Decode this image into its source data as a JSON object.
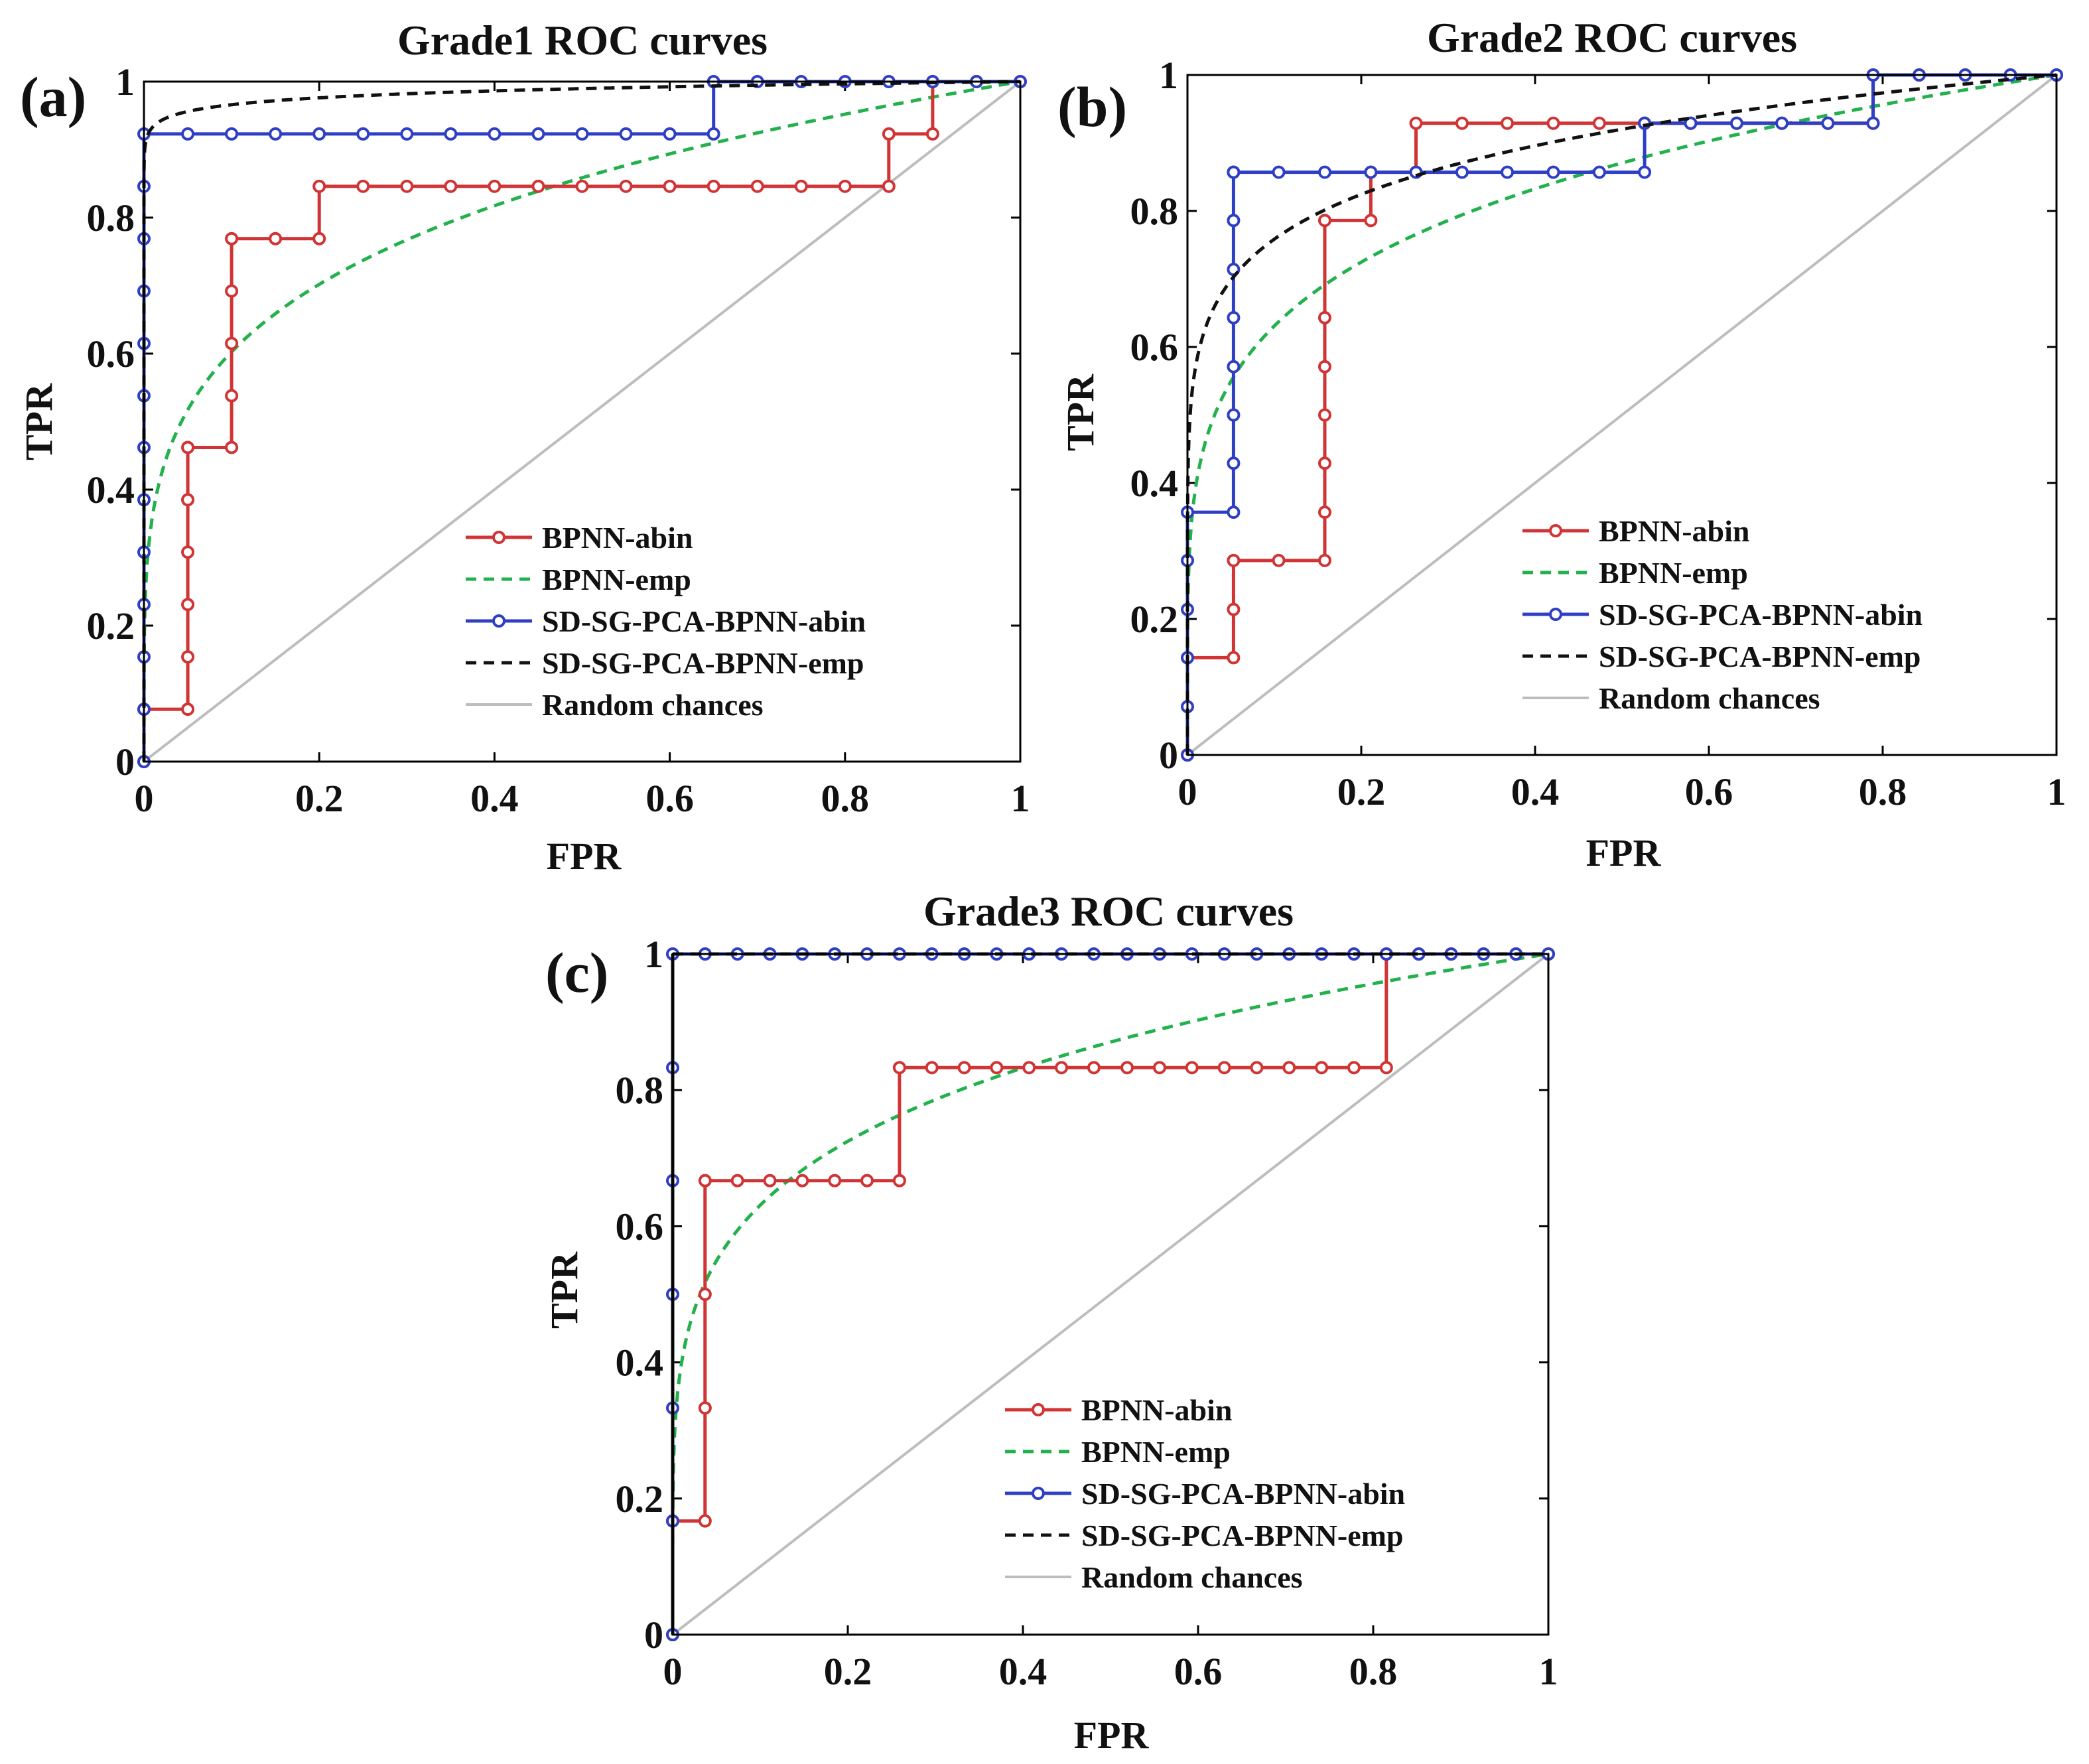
{
  "colors": {
    "bpnn_abin": "#d13434",
    "bpnn_emp": "#22b14c",
    "sd_abin": "#2f3fc4",
    "sd_emp": "#111111",
    "random": "#bdbdbd"
  },
  "chart_data": [
    {
      "type": "line",
      "panel_label": "(a)",
      "title": "Grade1 ROC curves",
      "xlabel": "FPR",
      "ylabel": "TPR",
      "xlim": [
        0,
        1
      ],
      "ylim": [
        0,
        1
      ],
      "xticks": [
        0,
        0.2,
        0.4,
        0.6,
        0.8,
        1
      ],
      "yticks": [
        0,
        0.2,
        0.4,
        0.6,
        0.8,
        1
      ],
      "xtick_labels": [
        "0",
        "0.2",
        "0.4",
        "0.6",
        "0.8",
        "1"
      ],
      "ytick_labels": [
        "0",
        "0.2",
        "0.4",
        "0.6",
        "0.8",
        "1"
      ],
      "legend_position": "bottom-right",
      "series": [
        {
          "key": "bpnn_abin",
          "name": "BPNN-abin",
          "style": "marker-line",
          "x": [
            0,
            0,
            0.05,
            0.05,
            0.05,
            0.05,
            0.05,
            0.05,
            0.1,
            0.1,
            0.1,
            0.1,
            0.1,
            0.15,
            0.2,
            0.2,
            0.25,
            0.3,
            0.35,
            0.4,
            0.45,
            0.5,
            0.55,
            0.6,
            0.65,
            0.7,
            0.75,
            0.8,
            0.85,
            0.85,
            0.9,
            0.9,
            0.95,
            1
          ],
          "y": [
            0,
            0.077,
            0.077,
            0.154,
            0.231,
            0.308,
            0.385,
            0.462,
            0.462,
            0.538,
            0.615,
            0.692,
            0.769,
            0.769,
            0.769,
            0.846,
            0.846,
            0.846,
            0.846,
            0.846,
            0.846,
            0.846,
            0.846,
            0.846,
            0.846,
            0.846,
            0.846,
            0.846,
            0.846,
            0.923,
            0.923,
            1,
            1,
            1
          ]
        },
        {
          "key": "bpnn_emp",
          "name": "BPNN-emp",
          "style": "dashed",
          "curve_exponent": 0.22
        },
        {
          "key": "sd_abin",
          "name": "SD-SG-PCA-BPNN-abin",
          "style": "marker-line",
          "x": [
            0,
            0,
            0,
            0,
            0,
            0,
            0,
            0,
            0,
            0,
            0,
            0,
            0,
            0.05,
            0.1,
            0.15,
            0.2,
            0.25,
            0.3,
            0.35,
            0.4,
            0.45,
            0.5,
            0.55,
            0.6,
            0.65,
            0.65,
            0.7,
            0.75,
            0.8,
            0.85,
            0.9,
            0.95,
            1
          ],
          "y": [
            0,
            0.077,
            0.154,
            0.231,
            0.308,
            0.385,
            0.462,
            0.538,
            0.615,
            0.692,
            0.769,
            0.846,
            0.923,
            0.923,
            0.923,
            0.923,
            0.923,
            0.923,
            0.923,
            0.923,
            0.923,
            0.923,
            0.923,
            0.923,
            0.923,
            0.923,
            1,
            1,
            1,
            1,
            1,
            1,
            1,
            1
          ]
        },
        {
          "key": "sd_emp",
          "name": "SD-SG-PCA-BPNN-emp",
          "style": "dashed",
          "curve_exponent": 0.015
        },
        {
          "key": "random",
          "name": "Random chances",
          "style": "solid",
          "x": [
            0,
            1
          ],
          "y": [
            0,
            1
          ]
        }
      ]
    },
    {
      "type": "line",
      "panel_label": "(b)",
      "title": "Grade2 ROC curves",
      "xlabel": "FPR",
      "ylabel": "TPR",
      "xlim": [
        0,
        1
      ],
      "ylim": [
        0,
        1
      ],
      "xticks": [
        0,
        0.2,
        0.4,
        0.6,
        0.8,
        1
      ],
      "yticks": [
        0,
        0.2,
        0.4,
        0.6,
        0.8,
        1
      ],
      "xtick_labels": [
        "0",
        "0.2",
        "0.4",
        "0.6",
        "0.8",
        "1"
      ],
      "ytick_labels": [
        "0",
        "0.2",
        "0.4",
        "0.6",
        "0.8",
        "1"
      ],
      "legend_position": "bottom-right",
      "series": [
        {
          "key": "bpnn_abin",
          "name": "BPNN-abin",
          "style": "marker-line",
          "x": [
            0,
            0,
            0.053,
            0.053,
            0.053,
            0.105,
            0.158,
            0.158,
            0.158,
            0.158,
            0.158,
            0.158,
            0.158,
            0.211,
            0.211,
            0.263,
            0.263,
            0.316,
            0.368,
            0.421,
            0.474,
            0.526,
            0.526,
            0.579,
            0.632,
            0.684,
            0.737,
            0.789,
            0.789,
            0.842,
            0.895,
            0.947,
            1
          ],
          "y": [
            0,
            0.143,
            0.143,
            0.214,
            0.286,
            0.286,
            0.286,
            0.357,
            0.429,
            0.5,
            0.571,
            0.643,
            0.786,
            0.786,
            0.857,
            0.857,
            0.929,
            0.929,
            0.929,
            0.929,
            0.929,
            0.929,
            0.929,
            0.929,
            0.929,
            0.929,
            0.929,
            0.929,
            1,
            1,
            1,
            1,
            1
          ]
        },
        {
          "key": "bpnn_emp",
          "name": "BPNN-emp",
          "style": "dashed",
          "curve_exponent": 0.2
        },
        {
          "key": "sd_abin",
          "name": "SD-SG-PCA-BPNN-abin",
          "style": "marker-line",
          "x": [
            0,
            0,
            0,
            0,
            0,
            0,
            0.053,
            0.053,
            0.053,
            0.053,
            0.053,
            0.053,
            0.053,
            0.053,
            0.053,
            0.105,
            0.158,
            0.211,
            0.263,
            0.316,
            0.368,
            0.421,
            0.474,
            0.526,
            0.526,
            0.579,
            0.632,
            0.684,
            0.737,
            0.789,
            0.789,
            0.842,
            0.895,
            0.947,
            1
          ],
          "y": [
            0,
            0.071,
            0.143,
            0.214,
            0.286,
            0.357,
            0.357,
            0.429,
            0.5,
            0.571,
            0.643,
            0.714,
            0.786,
            0.857,
            0.857,
            0.857,
            0.857,
            0.857,
            0.857,
            0.857,
            0.857,
            0.857,
            0.857,
            0.857,
            0.929,
            0.929,
            0.929,
            0.929,
            0.929,
            0.929,
            1,
            1,
            1,
            1,
            1
          ]
        },
        {
          "key": "sd_emp",
          "name": "SD-SG-PCA-BPNN-emp",
          "style": "dashed",
          "curve_exponent": 0.12
        },
        {
          "key": "random",
          "name": "Random chances",
          "style": "solid",
          "x": [
            0,
            1
          ],
          "y": [
            0,
            1
          ]
        }
      ]
    },
    {
      "type": "line",
      "panel_label": "(c)",
      "title": "Grade3 ROC curves",
      "xlabel": "FPR",
      "ylabel": "TPR",
      "xlim": [
        0,
        1
      ],
      "ylim": [
        0,
        1
      ],
      "xticks": [
        0,
        0.2,
        0.4,
        0.6,
        0.8,
        1
      ],
      "yticks": [
        0,
        0.2,
        0.4,
        0.6,
        0.8,
        1
      ],
      "xtick_labels": [
        "0",
        "0.2",
        "0.4",
        "0.6",
        "0.8",
        "1"
      ],
      "ytick_labels": [
        "0",
        "0.2",
        "0.4",
        "0.6",
        "0.8",
        "1"
      ],
      "legend_position": "bottom-right",
      "series": [
        {
          "key": "bpnn_abin",
          "name": "BPNN-abin",
          "style": "marker-line",
          "x": [
            0,
            0,
            0.037,
            0.037,
            0.037,
            0.037,
            0.074,
            0.111,
            0.148,
            0.185,
            0.222,
            0.259,
            0.259,
            0.296,
            0.333,
            0.37,
            0.407,
            0.444,
            0.481,
            0.519,
            0.556,
            0.593,
            0.63,
            0.667,
            0.704,
            0.741,
            0.778,
            0.815,
            0.815,
            0.852,
            0.889,
            0.926,
            0.963,
            1
          ],
          "y": [
            0,
            0.167,
            0.167,
            0.333,
            0.5,
            0.667,
            0.667,
            0.667,
            0.667,
            0.667,
            0.667,
            0.667,
            0.833,
            0.833,
            0.833,
            0.833,
            0.833,
            0.833,
            0.833,
            0.833,
            0.833,
            0.833,
            0.833,
            0.833,
            0.833,
            0.833,
            0.833,
            0.833,
            1,
            1,
            1,
            1,
            1,
            1
          ]
        },
        {
          "key": "bpnn_emp",
          "name": "BPNN-emp",
          "style": "dashed",
          "curve_exponent": 0.2
        },
        {
          "key": "sd_abin",
          "name": "SD-SG-PCA-BPNN-abin",
          "style": "marker-line",
          "x": [
            0,
            0,
            0,
            0,
            0,
            0,
            0,
            0.037,
            0.074,
            0.111,
            0.148,
            0.185,
            0.222,
            0.259,
            0.296,
            0.333,
            0.37,
            0.407,
            0.444,
            0.481,
            0.519,
            0.556,
            0.593,
            0.63,
            0.667,
            0.704,
            0.741,
            0.778,
            0.815,
            0.852,
            0.889,
            0.926,
            0.963,
            1
          ],
          "y": [
            0,
            0.167,
            0.333,
            0.5,
            0.667,
            0.833,
            1,
            1,
            1,
            1,
            1,
            1,
            1,
            1,
            1,
            1,
            1,
            1,
            1,
            1,
            1,
            1,
            1,
            1,
            1,
            1,
            1,
            1,
            1,
            1,
            1,
            1,
            1,
            1
          ]
        },
        {
          "key": "sd_emp",
          "name": "SD-SG-PCA-BPNN-emp",
          "style": "dashed",
          "curve_exponent": 0.0
        },
        {
          "key": "random",
          "name": "Random chances",
          "style": "solid",
          "x": [
            0,
            1
          ],
          "y": [
            0,
            1
          ]
        }
      ]
    }
  ]
}
